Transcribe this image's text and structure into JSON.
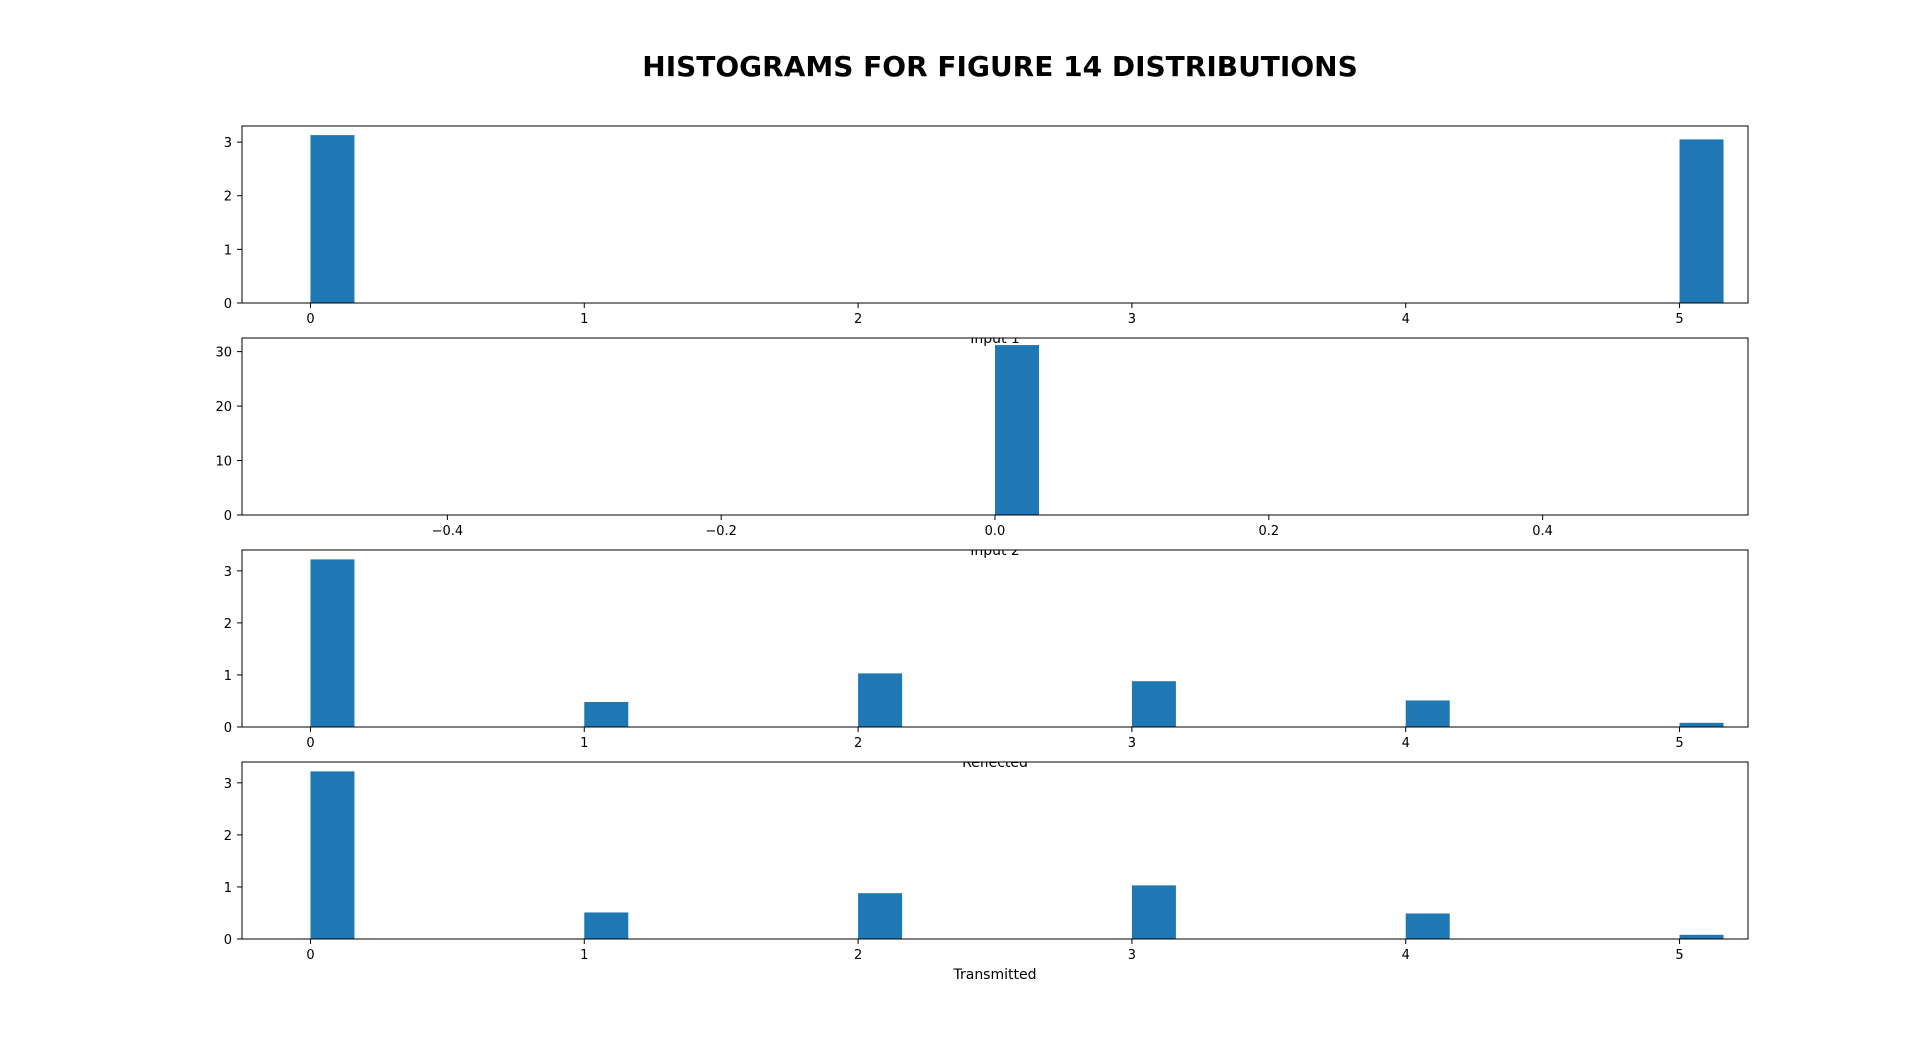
{
  "figure": {
    "title": "HISTOGRAMS FOR FIGURE 14 DISTRIBUTIONS"
  },
  "colors": {
    "bar": "#1f77b4",
    "axes": "#000000",
    "background": "#ffffff"
  },
  "chart_data": [
    {
      "type": "bar",
      "xlabel": "Input 1",
      "ylabel": "",
      "grid": false,
      "xlim": [
        -0.25,
        5.25
      ],
      "ylim": [
        0,
        3.3
      ],
      "xticks": [
        "0",
        "1",
        "2",
        "3",
        "4",
        "5"
      ],
      "xtick_values": [
        0,
        1,
        2,
        3,
        4,
        5
      ],
      "yticks": [
        "0",
        "1",
        "2",
        "3"
      ],
      "ytick_values": [
        0,
        1,
        2,
        3
      ],
      "bars": [
        {
          "x": 0,
          "value": 3.13
        },
        {
          "x": 5,
          "value": 3.05
        }
      ]
    },
    {
      "type": "bar",
      "xlabel": "Input 2",
      "ylabel": "",
      "grid": false,
      "xlim": [
        -0.55,
        0.55
      ],
      "ylim": [
        0,
        32.5
      ],
      "xticks": [
        "−0.4",
        "−0.2",
        "0.0",
        "0.2",
        "0.4"
      ],
      "xtick_values": [
        -0.4,
        -0.2,
        0.0,
        0.2,
        0.4
      ],
      "yticks": [
        "0",
        "10",
        "20",
        "30"
      ],
      "ytick_values": [
        0,
        10,
        20,
        30
      ],
      "bars": [
        {
          "x": 0.0,
          "value": 31.2
        }
      ]
    },
    {
      "type": "bar",
      "xlabel": "Reflected",
      "ylabel": "",
      "grid": false,
      "xlim": [
        -0.25,
        5.25
      ],
      "ylim": [
        0,
        3.4
      ],
      "xticks": [
        "0",
        "1",
        "2",
        "3",
        "4",
        "5"
      ],
      "xtick_values": [
        0,
        1,
        2,
        3,
        4,
        5
      ],
      "yticks": [
        "0",
        "1",
        "2",
        "3"
      ],
      "ytick_values": [
        0,
        1,
        2,
        3
      ],
      "bars": [
        {
          "x": 0,
          "value": 3.22
        },
        {
          "x": 1,
          "value": 0.48
        },
        {
          "x": 2,
          "value": 1.03
        },
        {
          "x": 3,
          "value": 0.88
        },
        {
          "x": 4,
          "value": 0.51
        },
        {
          "x": 5,
          "value": 0.08
        }
      ]
    },
    {
      "type": "bar",
      "xlabel": "Transmitted",
      "ylabel": "",
      "grid": false,
      "xlim": [
        -0.25,
        5.25
      ],
      "ylim": [
        0,
        3.4
      ],
      "xticks": [
        "0",
        "1",
        "2",
        "3",
        "4",
        "5"
      ],
      "xtick_values": [
        0,
        1,
        2,
        3,
        4,
        5
      ],
      "yticks": [
        "0",
        "1",
        "2",
        "3"
      ],
      "ytick_values": [
        0,
        1,
        2,
        3
      ],
      "bars": [
        {
          "x": 0,
          "value": 3.22
        },
        {
          "x": 1,
          "value": 0.51
        },
        {
          "x": 2,
          "value": 0.88
        },
        {
          "x": 3,
          "value": 1.03
        },
        {
          "x": 4,
          "value": 0.49
        },
        {
          "x": 5,
          "value": 0.08
        }
      ]
    }
  ]
}
